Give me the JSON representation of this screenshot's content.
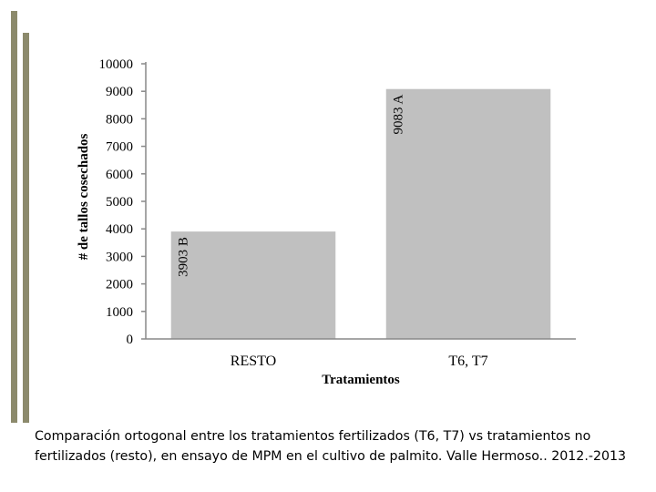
{
  "chart_data": {
    "type": "bar",
    "categories": [
      "RESTO",
      "T6, T7"
    ],
    "values": [
      3903,
      9083
    ],
    "data_labels": [
      "3903  B",
      "9083  A"
    ],
    "xlabel": "Tratamientos",
    "ylabel": "# de tallos cosechados",
    "ylim": [
      0,
      10000
    ],
    "yticks": [
      "0",
      "1000",
      "2000",
      "3000",
      "4000",
      "5000",
      "6000",
      "7000",
      "8000",
      "9000",
      "10000"
    ],
    "bar_color": "#c0c0c0",
    "grid": false,
    "legend": "none"
  },
  "caption": "Comparación ortogonal entre los tratamientos fertilizados (T6, T7) vs tratamientos no fertilizados (resto), en ensayo de MPM en el cultivo de palmito. Valle Hermoso.. 2012.-2013",
  "colors": {
    "decor_bar": "#8c8a6c",
    "bar": "#c0c0c0",
    "axis": "#888888"
  }
}
